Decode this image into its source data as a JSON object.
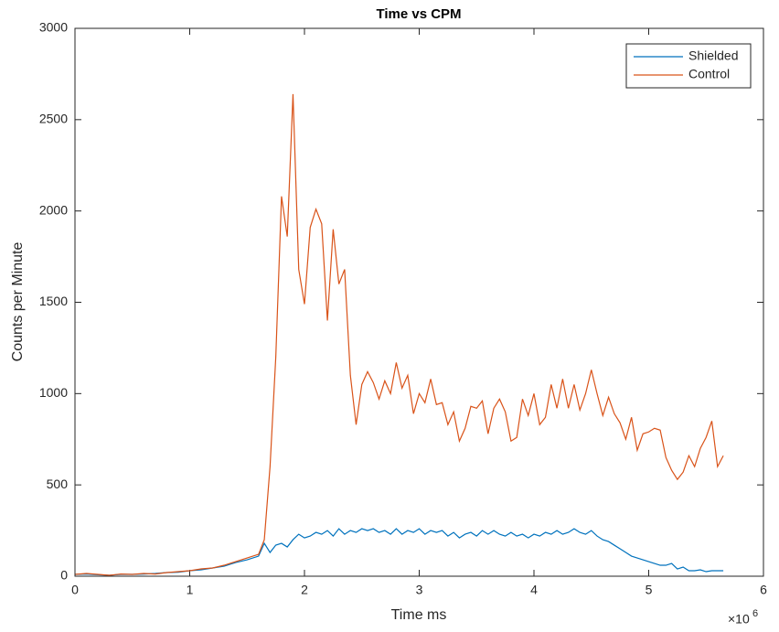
{
  "chart_data": {
    "type": "line",
    "title": "Time vs CPM",
    "x_label": "Time ms",
    "y_label": "Counts per Minute",
    "x_multiplier": {
      "base": "×10",
      "exponent": "6"
    },
    "x": [
      0.0,
      0.1,
      0.2,
      0.3,
      0.4,
      0.5,
      0.6,
      0.7,
      0.8,
      0.9,
      1.0,
      1.1,
      1.2,
      1.3,
      1.4,
      1.5,
      1.6,
      1.65,
      1.7,
      1.75,
      1.8,
      1.85,
      1.9,
      1.95,
      2.0,
      2.05,
      2.1,
      2.15,
      2.2,
      2.25,
      2.3,
      2.35,
      2.4,
      2.45,
      2.5,
      2.55,
      2.6,
      2.65,
      2.7,
      2.75,
      2.8,
      2.85,
      2.9,
      2.95,
      3.0,
      3.05,
      3.1,
      3.15,
      3.2,
      3.25,
      3.3,
      3.35,
      3.4,
      3.45,
      3.5,
      3.55,
      3.6,
      3.65,
      3.7,
      3.75,
      3.8,
      3.85,
      3.9,
      3.95,
      4.0,
      4.05,
      4.1,
      4.15,
      4.2,
      4.25,
      4.3,
      4.35,
      4.4,
      4.45,
      4.5,
      4.55,
      4.6,
      4.65,
      4.7,
      4.75,
      4.8,
      4.85,
      4.9,
      4.95,
      5.0,
      5.05,
      5.1,
      5.15,
      5.2,
      5.25,
      5.3,
      5.35,
      5.4,
      5.45,
      5.5,
      5.55,
      5.6,
      5.65
    ],
    "series": [
      {
        "name": "Shielded",
        "color": "#0072bd",
        "values": [
          10,
          12,
          8,
          5,
          10,
          10,
          12,
          15,
          20,
          22,
          30,
          35,
          45,
          55,
          75,
          90,
          110,
          180,
          130,
          170,
          180,
          160,
          200,
          230,
          210,
          220,
          240,
          230,
          250,
          220,
          260,
          230,
          250,
          240,
          260,
          250,
          260,
          240,
          250,
          230,
          260,
          230,
          250,
          240,
          260,
          230,
          250,
          240,
          250,
          220,
          240,
          210,
          230,
          240,
          220,
          250,
          230,
          250,
          230,
          220,
          240,
          220,
          230,
          210,
          230,
          220,
          240,
          230,
          250,
          230,
          240,
          260,
          240,
          230,
          250,
          220,
          200,
          190,
          170,
          150,
          130,
          110,
          100,
          90,
          80,
          70,
          60,
          60,
          70,
          40,
          50,
          30,
          30,
          35,
          25,
          30,
          30,
          30
        ]
      },
      {
        "name": "Control",
        "color": "#d95319",
        "values": [
          10,
          15,
          10,
          5,
          12,
          10,
          15,
          12,
          20,
          25,
          30,
          40,
          45,
          60,
          80,
          100,
          120,
          200,
          600,
          1200,
          2080,
          1860,
          2640,
          1680,
          1490,
          1910,
          2010,
          1930,
          1400,
          1900,
          1600,
          1680,
          1100,
          830,
          1050,
          1120,
          1060,
          970,
          1070,
          1000,
          1170,
          1030,
          1100,
          890,
          1000,
          950,
          1080,
          940,
          950,
          830,
          900,
          740,
          810,
          930,
          920,
          960,
          780,
          920,
          970,
          900,
          740,
          760,
          970,
          880,
          1000,
          830,
          870,
          1050,
          920,
          1080,
          920,
          1050,
          910,
          1000,
          1130,
          1000,
          880,
          980,
          890,
          840,
          750,
          870,
          690,
          780,
          790,
          810,
          800,
          650,
          580,
          530,
          570,
          660,
          600,
          700,
          760,
          850,
          600,
          660
        ]
      }
    ],
    "xlim": [
      0,
      6
    ],
    "xticks": [
      0,
      1,
      2,
      3,
      4,
      5,
      6
    ],
    "ylim": [
      0,
      3000
    ],
    "yticks": [
      0,
      500,
      1000,
      1500,
      2000,
      2500,
      3000
    ],
    "legend": "top-right"
  }
}
